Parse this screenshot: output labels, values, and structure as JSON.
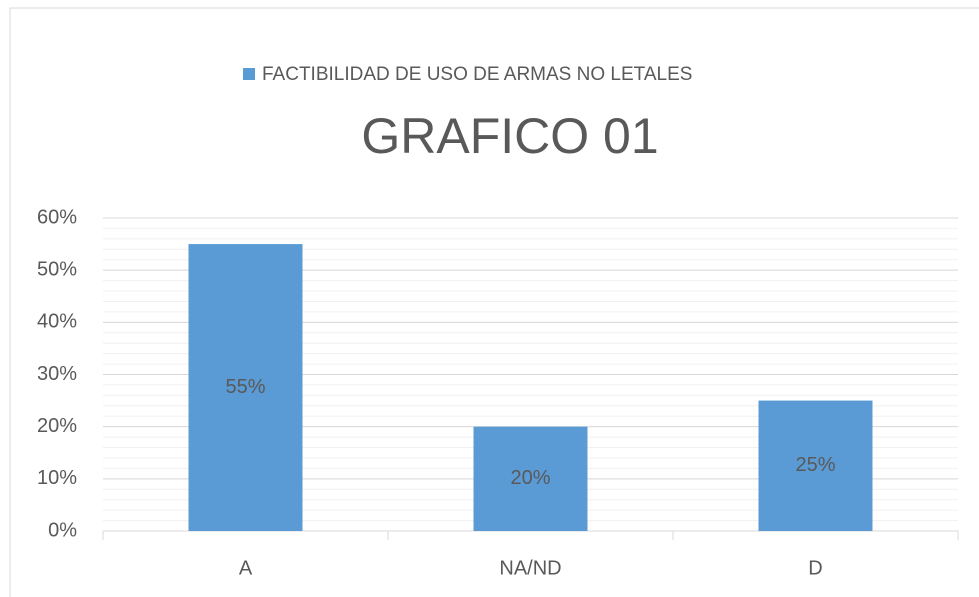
{
  "chart_data": {
    "type": "bar",
    "title": "GRAFICO 01",
    "categories": [
      "A",
      "NA/ND",
      "D"
    ],
    "series": [
      {
        "name": "FACTIBILIDAD DE USO DE ARMAS NO LETALES",
        "color": "#5b9bd5",
        "values": [
          55,
          20,
          25
        ],
        "value_labels": [
          "55%",
          "20%",
          "25%"
        ]
      }
    ],
    "ylim": [
      0,
      60
    ],
    "yticks": [
      {
        "value": 0,
        "label": "0%"
      },
      {
        "value": 10,
        "label": "10%"
      },
      {
        "value": 20,
        "label": "20%"
      },
      {
        "value": 30,
        "label": "30%"
      },
      {
        "value": 40,
        "label": "40%"
      },
      {
        "value": 50,
        "label": "50%"
      },
      {
        "value": 60,
        "label": "60%"
      }
    ],
    "grid": true,
    "minor_grid": true,
    "legend": "top"
  }
}
